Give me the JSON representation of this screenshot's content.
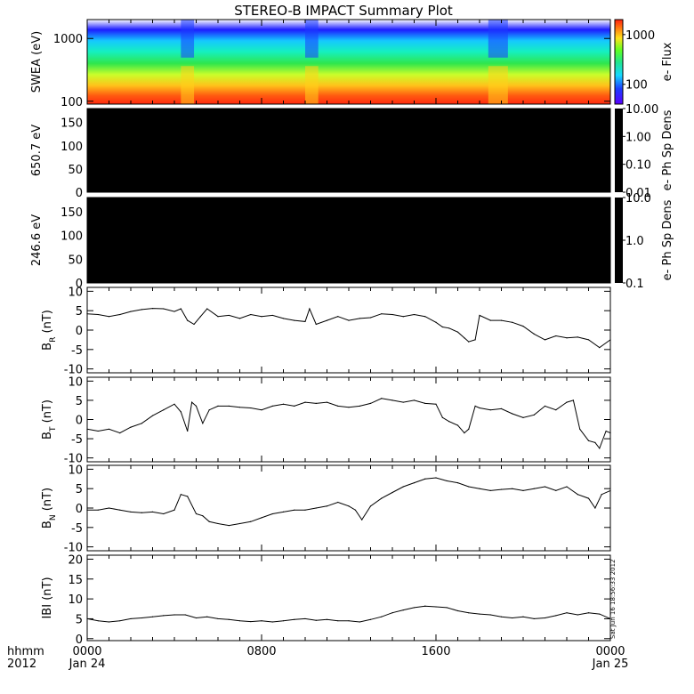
{
  "title": "STEREO-B IMPACT Summary Plot",
  "stamp": "Sat Jun 16 18:56:33 2012",
  "time_axis": {
    "ticks": [
      {
        "t": 0,
        "label": "0000",
        "sub": "Jan 24"
      },
      {
        "t": 8,
        "label": "0800",
        "sub": ""
      },
      {
        "t": 16,
        "label": "1600",
        "sub": ""
      },
      {
        "t": 24,
        "label": "0000",
        "sub": "Jan 25"
      }
    ],
    "corner_label": "hhmm",
    "corner_sub": "2012"
  },
  "chart_data": [
    {
      "type": "heatmap",
      "ylabel": "SWEA (eV)",
      "yscale": "log",
      "ylim": [
        90,
        2000
      ],
      "yticks": [
        "100",
        "1000"
      ],
      "xlim": [
        0,
        24
      ],
      "colorbar": {
        "label": "e- Flux",
        "scale": "log",
        "range": [
          40,
          2000
        ],
        "ticks": [
          "100",
          "1000"
        ]
      },
      "low_flux_intervals": [
        [
          4.3,
          4.9
        ],
        [
          10.0,
          10.6
        ],
        [
          18.4,
          19.3
        ]
      ],
      "gap": [
        [
          10.0,
          10.4
        ]
      ]
    },
    {
      "type": "heatmap",
      "ylabel": "650.7 eV",
      "ylim": [
        0,
        180
      ],
      "yticks": [
        "0",
        "50",
        "100",
        "150"
      ],
      "fill": "#000000",
      "colorbar": {
        "label": "e- Ph Sp Dens",
        "scale": "log",
        "range": [
          0.01,
          10.0
        ],
        "ticks": [
          "0.01",
          "0.10",
          "1.00",
          "10.00"
        ]
      }
    },
    {
      "type": "heatmap",
      "ylabel": "246.6 eV",
      "ylim": [
        0,
        180
      ],
      "yticks": [
        "0",
        "50",
        "100",
        "150"
      ],
      "fill": "#000000",
      "colorbar": {
        "label": "e- Ph Sp Dens",
        "scale": "log",
        "range": [
          0.1,
          10.0
        ],
        "ticks": [
          "0.1",
          "1.0",
          "10.0"
        ]
      }
    },
    {
      "type": "line",
      "ylabel_main": "B",
      "ylabel_sub": "R",
      "ylabel_unit": "(nT)",
      "ylim": [
        -11,
        11
      ],
      "yticks": [
        "-10",
        "-5",
        "0",
        "5",
        "10"
      ],
      "x": [
        0,
        0.5,
        1,
        1.5,
        2,
        2.5,
        3,
        3.5,
        4,
        4.3,
        4.6,
        4.9,
        5.2,
        5.5,
        6,
        6.5,
        7,
        7.5,
        8,
        8.5,
        9,
        9.5,
        10,
        10.2,
        10.5,
        11,
        11.5,
        12,
        12.5,
        13,
        13.5,
        14,
        14.5,
        15,
        15.5,
        16,
        16.3,
        16.6,
        17,
        17.3,
        17.5,
        17.8,
        18,
        18.5,
        19,
        19.5,
        20,
        20.5,
        21,
        21.5,
        22,
        22.5,
        23,
        23.5,
        24
      ],
      "values": [
        4.2,
        4.0,
        3.5,
        4.0,
        4.8,
        5.3,
        5.6,
        5.5,
        4.8,
        5.5,
        2.5,
        1.5,
        3.5,
        5.5,
        3.5,
        3.8,
        3.0,
        4.0,
        3.5,
        3.8,
        3.0,
        2.5,
        2.2,
        5.5,
        1.5,
        2.5,
        3.5,
        2.5,
        3.0,
        3.2,
        4.2,
        4.0,
        3.5,
        4.0,
        3.5,
        2.0,
        0.8,
        0.5,
        -0.5,
        -2.0,
        -3.0,
        -2.5,
        3.8,
        2.5,
        2.5,
        2.0,
        1.0,
        -1.0,
        -2.5,
        -1.5,
        -2.0,
        -1.8,
        -2.5,
        -4.5,
        -2.5
      ]
    },
    {
      "type": "line",
      "ylabel_main": "B",
      "ylabel_sub": "T",
      "ylabel_unit": "(nT)",
      "ylim": [
        -11,
        11
      ],
      "yticks": [
        "-10",
        "-5",
        "0",
        "5",
        "10"
      ],
      "x": [
        0,
        0.5,
        1,
        1.5,
        2,
        2.5,
        3,
        3.5,
        4,
        4.3,
        4.6,
        4.8,
        5.0,
        5.3,
        5.6,
        6,
        6.5,
        7,
        7.5,
        8,
        8.5,
        9,
        9.5,
        10,
        10.5,
        11,
        11.5,
        12,
        12.5,
        13,
        13.5,
        14,
        14.5,
        15,
        15.5,
        16,
        16.3,
        16.6,
        17,
        17.3,
        17.5,
        17.8,
        18,
        18.5,
        19,
        19.5,
        20,
        20.5,
        21,
        21.5,
        22,
        22.3,
        22.6,
        23,
        23.3,
        23.5,
        23.8,
        24
      ],
      "values": [
        -2.5,
        -3.0,
        -2.5,
        -3.5,
        -2.0,
        -1.0,
        1.0,
        2.5,
        4.0,
        2.0,
        -3.0,
        4.5,
        3.5,
        -1.0,
        2.5,
        3.5,
        3.5,
        3.2,
        3.0,
        2.5,
        3.5,
        4.0,
        3.5,
        4.5,
        4.2,
        4.5,
        3.5,
        3.2,
        3.5,
        4.2,
        5.5,
        5.0,
        4.5,
        5.0,
        4.2,
        4.0,
        0.5,
        -0.5,
        -1.5,
        -3.5,
        -2.5,
        3.5,
        3.0,
        2.5,
        2.8,
        1.5,
        0.5,
        1.2,
        3.5,
        2.5,
        4.5,
        5.0,
        -2.5,
        -5.5,
        -6.0,
        -7.5,
        -3.0,
        -3.5
      ]
    },
    {
      "type": "line",
      "ylabel_main": "B",
      "ylabel_sub": "N",
      "ylabel_unit": "(nT)",
      "ylim": [
        -11,
        11
      ],
      "yticks": [
        "-10",
        "-5",
        "0",
        "5",
        "10"
      ],
      "x": [
        0,
        0.5,
        1,
        1.5,
        2,
        2.5,
        3,
        3.5,
        4,
        4.3,
        4.6,
        5,
        5.3,
        5.6,
        6,
        6.5,
        7,
        7.5,
        8,
        8.5,
        9,
        9.5,
        10,
        10.5,
        11,
        11.5,
        12,
        12.3,
        12.6,
        13,
        13.5,
        14,
        14.5,
        15,
        15.5,
        16,
        16.5,
        17,
        17.5,
        18,
        18.5,
        19,
        19.5,
        20,
        20.5,
        21,
        21.5,
        22,
        22.5,
        23,
        23.3,
        23.6,
        24
      ],
      "values": [
        -0.5,
        -0.5,
        0.0,
        -0.5,
        -1.0,
        -1.2,
        -1.0,
        -1.5,
        -0.5,
        3.5,
        3.0,
        -1.5,
        -2.0,
        -3.5,
        -4.0,
        -4.5,
        -4.0,
        -3.5,
        -2.5,
        -1.5,
        -1.0,
        -0.5,
        -0.5,
        0.0,
        0.5,
        1.5,
        0.5,
        -0.5,
        -3.0,
        0.5,
        2.5,
        4.0,
        5.5,
        6.5,
        7.5,
        7.8,
        7.0,
        6.5,
        5.5,
        5.0,
        4.5,
        4.8,
        5.0,
        4.5,
        5.0,
        5.5,
        4.5,
        5.5,
        3.5,
        2.5,
        0.0,
        3.5,
        4.5
      ]
    },
    {
      "type": "line",
      "ylabel_main": "IBI",
      "ylabel_sub": "",
      "ylabel_unit": "(nT)",
      "ylim": [
        -0.5,
        21
      ],
      "yticks": [
        "0",
        "5",
        "10",
        "15",
        "20"
      ],
      "x": [
        0,
        0.5,
        1,
        1.5,
        2,
        2.5,
        3,
        3.5,
        4,
        4.5,
        5,
        5.5,
        6,
        6.5,
        7,
        7.5,
        8,
        8.5,
        9,
        9.5,
        10,
        10.5,
        11,
        11.5,
        12,
        12.5,
        13,
        13.5,
        14,
        14.5,
        15,
        15.5,
        16,
        16.5,
        17,
        17.5,
        18,
        18.5,
        19,
        19.5,
        20,
        20.5,
        21,
        21.5,
        22,
        22.5,
        23,
        23.5,
        24
      ],
      "values": [
        5.0,
        4.5,
        4.2,
        4.5,
        5.0,
        5.2,
        5.5,
        5.8,
        6.0,
        6.0,
        5.2,
        5.5,
        5.0,
        4.8,
        4.5,
        4.3,
        4.5,
        4.2,
        4.5,
        4.8,
        5.0,
        4.6,
        4.8,
        4.5,
        4.5,
        4.2,
        4.8,
        5.5,
        6.5,
        7.2,
        7.8,
        8.2,
        8.0,
        7.8,
        7.0,
        6.5,
        6.2,
        6.0,
        5.5,
        5.2,
        5.5,
        5.0,
        5.2,
        5.8,
        6.5,
        6.0,
        6.5,
        6.2,
        5.0
      ]
    }
  ]
}
